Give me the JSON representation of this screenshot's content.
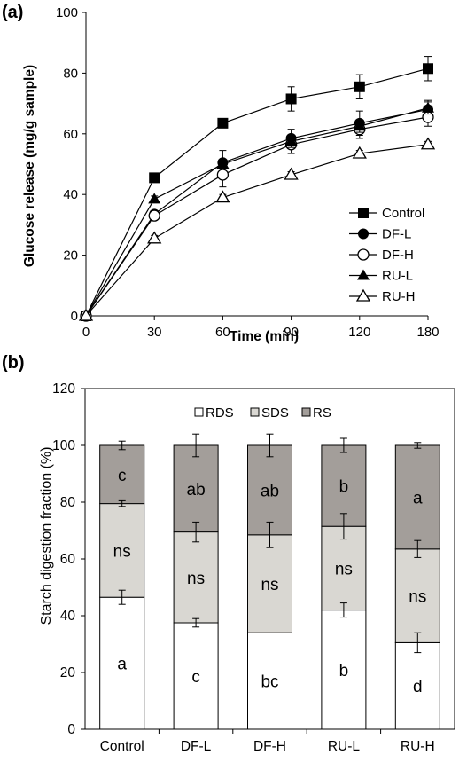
{
  "panel_a": {
    "label": "(a)",
    "ylabel": "Glucose release (mg/g sample)",
    "xlabel": "Time (min)",
    "x_ticks": [
      "0",
      "30",
      "60",
      "90",
      "120",
      "180"
    ],
    "y_ticks": [
      "0",
      "20",
      "40",
      "60",
      "80",
      "100"
    ]
  },
  "panel_b": {
    "label": "(b)",
    "ylabel": "Starch digestion fraction (%)",
    "y_ticks": [
      "0",
      "20",
      "40",
      "60",
      "80",
      "100",
      "120"
    ]
  },
  "chart_data": [
    {
      "type": "line",
      "xlabel": "Time (min)",
      "ylabel": "Glucose release (mg/g sample)",
      "x": [
        0,
        30,
        60,
        90,
        120,
        180
      ],
      "x_scale": "categorical-evenly-spaced",
      "ylim": [
        0,
        100
      ],
      "legend_position": "bottom-right",
      "grid": false,
      "series": [
        {
          "name": "Control",
          "marker": "filled-square",
          "values": [
            0,
            45.5,
            63.5,
            71.5,
            75.5,
            81.5
          ],
          "errors": [
            0,
            1.0,
            1.0,
            4.0,
            4.0,
            4.0
          ]
        },
        {
          "name": "DF-L",
          "marker": "filled-circle",
          "values": [
            0,
            33.5,
            50.5,
            58.5,
            63.5,
            68.0
          ],
          "errors": [
            0,
            1.0,
            4.0,
            3.0,
            4.0,
            3.0
          ]
        },
        {
          "name": "DF-H",
          "marker": "open-circle",
          "values": [
            0,
            33.0,
            46.5,
            56.5,
            61.5,
            65.5
          ],
          "errors": [
            0,
            1.0,
            4.0,
            3.0,
            3.0,
            3.0
          ]
        },
        {
          "name": "RU-L",
          "marker": "filled-triangle",
          "values": [
            0,
            38.5,
            50.0,
            57.5,
            62.5,
            68.5
          ],
          "errors": [
            0,
            1.0,
            1.0,
            2.0,
            2.0,
            2.0
          ]
        },
        {
          "name": "RU-H",
          "marker": "open-triangle",
          "values": [
            0,
            25.5,
            39.0,
            46.5,
            53.5,
            56.5
          ],
          "errors": [
            0,
            1.0,
            1.0,
            1.0,
            1.0,
            1.0
          ]
        }
      ]
    },
    {
      "type": "bar",
      "stacked": true,
      "ylabel": "Starch digestion fraction (%)",
      "ylim": [
        0,
        120
      ],
      "legend_position": "top-center",
      "grid": false,
      "categories": [
        "Control",
        "DF-L",
        "DF-H",
        "RU-L",
        "RU-H"
      ],
      "series": [
        {
          "name": "RDS",
          "color": "#ffffff",
          "values": [
            46.5,
            37.5,
            34.0,
            42.0,
            30.5
          ],
          "errors": [
            2.5,
            1.5,
            0,
            2.5,
            3.5
          ],
          "letters": [
            "a",
            "c",
            "bc",
            "b",
            "d"
          ]
        },
        {
          "name": "SDS",
          "color": "#d9d7d2",
          "values": [
            33.0,
            32.0,
            34.5,
            29.5,
            33.0
          ],
          "errors": [
            1.0,
            3.5,
            4.5,
            4.5,
            3.0
          ],
          "letters": [
            "ns",
            "ns",
            "ns",
            "ns",
            "ns"
          ]
        },
        {
          "name": "RS",
          "color": "#a39e9a",
          "values": [
            20.5,
            30.5,
            31.5,
            28.5,
            36.5
          ],
          "errors": [
            1.5,
            4.0,
            4.0,
            2.5,
            1.0
          ],
          "letters": [
            "c",
            "ab",
            "ab",
            "b",
            "a"
          ]
        }
      ]
    }
  ]
}
